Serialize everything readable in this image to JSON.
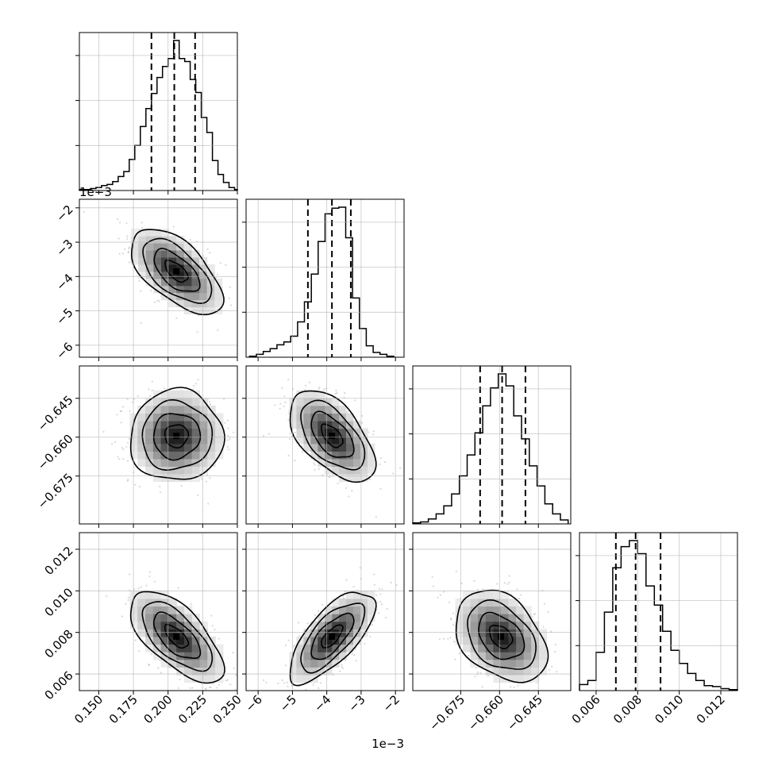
{
  "chart_data": {
    "type": "corner",
    "parameters": 4,
    "grid": true,
    "colors": {
      "ink": "#000000",
      "grid": "#b0b0b0",
      "scatter": "#7f7f7f",
      "frame": "#000000"
    },
    "contour_levels": 3,
    "axes": [
      {
        "range": [
          0.136,
          0.25
        ],
        "ticks": [
          0.15,
          0.175,
          0.2,
          0.225,
          0.25
        ],
        "tick_labels": [
          "0.150",
          "0.175",
          "0.200",
          "0.225",
          "0.250"
        ],
        "offset_label": ""
      },
      {
        "range": [
          -6.35,
          -1.75
        ],
        "ticks": [
          -6,
          -5,
          -4,
          -3,
          -2
        ],
        "tick_labels": [
          "−6",
          "−5",
          "−4",
          "−3",
          "−2"
        ],
        "offset_label": "1e−3"
      },
      {
        "range": [
          -0.6935,
          -0.6325
        ],
        "ticks": [
          -0.675,
          -0.66,
          -0.645
        ],
        "tick_labels": [
          "−0.675",
          "−0.660",
          "−0.645"
        ],
        "offset_label": ""
      },
      {
        "range": [
          0.0052,
          0.0128
        ],
        "ticks": [
          0.006,
          0.008,
          0.01,
          0.012
        ],
        "tick_labels": [
          "0.006",
          "0.008",
          "0.010",
          "0.012"
        ],
        "offset_label": ""
      }
    ],
    "marginals": [
      {
        "quantiles": [
          0.188,
          0.2045,
          0.2195
        ],
        "edges": [
          0.136,
          0.14,
          0.144,
          0.148,
          0.152,
          0.156,
          0.16,
          0.164,
          0.168,
          0.172,
          0.176,
          0.18,
          0.184,
          0.188,
          0.192,
          0.196,
          0.2,
          0.204,
          0.208,
          0.212,
          0.216,
          0.22,
          0.224,
          0.228,
          0.232,
          0.236,
          0.24,
          0.244,
          0.248,
          0.25
        ],
        "counts": [
          1,
          1,
          2,
          3,
          5,
          6,
          9,
          14,
          19,
          31,
          45,
          64,
          82,
          97,
          113,
          124,
          132,
          150,
          132,
          129,
          111,
          98,
          73,
          58,
          30,
          16,
          8,
          3,
          1
        ]
      },
      {
        "quantiles": [
          -4.55,
          -3.85,
          -3.3
        ],
        "edges": [
          -6.25,
          -6.05,
          -5.85,
          -5.65,
          -5.45,
          -5.25,
          -5.05,
          -4.85,
          -4.65,
          -4.45,
          -4.25,
          -4.05,
          -3.85,
          -3.65,
          -3.45,
          -3.25,
          -3.05,
          -2.85,
          -2.65,
          -2.45,
          -2.25,
          -2.05
        ],
        "counts": [
          1,
          3,
          6,
          9,
          13,
          16,
          22,
          37,
          58,
          87,
          121,
          150,
          156,
          157,
          125,
          62,
          30,
          12,
          5,
          3,
          1
        ]
      },
      {
        "quantiles": [
          -0.6675,
          -0.659,
          -0.65
        ],
        "edges": [
          -0.6935,
          -0.6905,
          -0.6875,
          -0.6845,
          -0.6815,
          -0.6785,
          -0.6755,
          -0.6725,
          -0.6695,
          -0.6665,
          -0.6635,
          -0.6605,
          -0.6575,
          -0.6545,
          -0.6515,
          -0.6485,
          -0.6455,
          -0.6425,
          -0.6395,
          -0.6365,
          -0.6335
        ],
        "counts": [
          1,
          2,
          5,
          10,
          18,
          30,
          48,
          69,
          91,
          118,
          136,
          150,
          138,
          108,
          85,
          58,
          38,
          20,
          10,
          4
        ]
      },
      {
        "quantiles": [
          0.00695,
          0.0079,
          0.0091
        ],
        "edges": [
          0.0052,
          0.0056,
          0.006,
          0.0064,
          0.0068,
          0.0072,
          0.0076,
          0.008,
          0.0084,
          0.0088,
          0.0092,
          0.0096,
          0.01,
          0.0104,
          0.0108,
          0.0112,
          0.0116,
          0.012,
          0.0124,
          0.0128
        ],
        "counts": [
          6,
          10,
          38,
          78,
          122,
          143,
          149,
          136,
          104,
          85,
          59,
          40,
          27,
          17,
          10,
          5,
          4,
          2,
          1
        ]
      }
    ],
    "pairs": [
      {
        "x": 0,
        "y": 1,
        "center": [
          0.206,
          -3.85
        ],
        "sd": [
          0.0165,
          0.62
        ],
        "corr": -0.6
      },
      {
        "x": 0,
        "y": 2,
        "center": [
          0.206,
          -0.6595
        ],
        "sd": [
          0.0168,
          0.0088
        ],
        "corr": 0.02
      },
      {
        "x": 1,
        "y": 2,
        "center": [
          -3.85,
          -0.6595
        ],
        "sd": [
          0.62,
          0.0088
        ],
        "corr": -0.55
      },
      {
        "x": 0,
        "y": 3,
        "center": [
          0.206,
          0.0078
        ],
        "sd": [
          0.0168,
          0.0011
        ],
        "corr": -0.65
      },
      {
        "x": 1,
        "y": 3,
        "center": [
          -3.85,
          0.0078
        ],
        "sd": [
          0.62,
          0.0011
        ],
        "corr": 0.7
      },
      {
        "x": 2,
        "y": 3,
        "center": [
          -0.6595,
          0.0078
        ],
        "sd": [
          0.0088,
          0.0011
        ],
        "corr": -0.35
      }
    ]
  }
}
